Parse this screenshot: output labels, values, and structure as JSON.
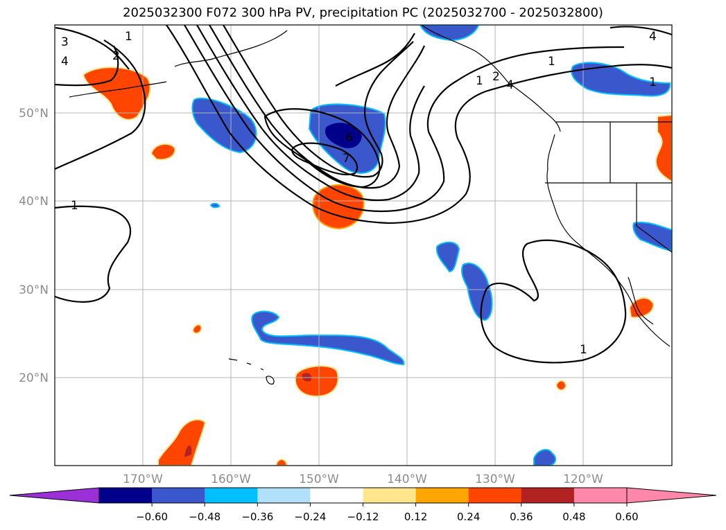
{
  "title": "2025032300 F072 300 hPa PV, precipitation PC (2025032700 - 2025032800)",
  "map": {
    "lat_labels": [
      "50°N",
      "40°N",
      "30°N",
      "20°N"
    ],
    "lon_labels": [
      "170°W",
      "160°W",
      "150°W",
      "140°W",
      "130°W",
      "120°W"
    ],
    "pv_contour_labels": [
      "1",
      "2",
      "3",
      "4",
      "1",
      "6",
      "7",
      "1",
      "1",
      "2",
      "4",
      "1",
      "1",
      "4"
    ]
  },
  "colorbar": {
    "ticks": [
      "−0.60",
      "−0.48",
      "−0.36",
      "−0.24",
      "−0.12",
      "0.12",
      "0.24",
      "0.36",
      "0.48",
      "0.60"
    ],
    "colors": [
      "#9b30d8",
      "#00008b",
      "#3a58cc",
      "#00bfff",
      "#b0e0fa",
      "#ffffff",
      "#ffe68c",
      "#ffa500",
      "#ff4500",
      "#b22222",
      "#ff88aa",
      "#ff88aa"
    ]
  }
}
